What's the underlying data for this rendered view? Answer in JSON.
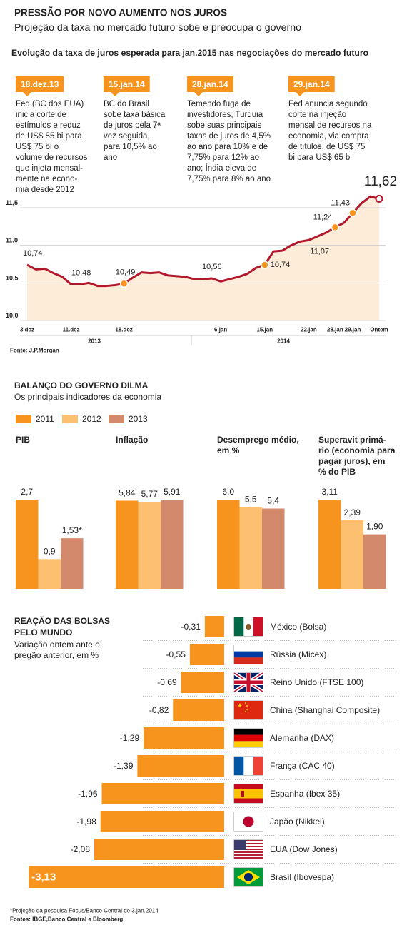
{
  "header": {
    "title": "PRESSÃO POR NOVO AUMENTO NOS JUROS",
    "subtitle": "Projeção da taxa no mercado futuro sobe e preocupa o governo"
  },
  "chart_data": [
    {
      "type": "line",
      "title": "Evolução da taxa de juros esperada para jan.2015 nas negociações do mercado futuro",
      "annotations": [
        {
          "date": "18.dez.13",
          "lines": [
            "Fed (BC dos EUA)",
            "inicia corte de",
            "estímulos e reduz",
            "de US$ 85 bi para",
            "US$ 75 bi o",
            "volume de recursos",
            "que injeta mensal-",
            "mente na econo-",
            "mia desde 2012"
          ]
        },
        {
          "date": "15.jan.14",
          "lines": [
            "BC do Brasil",
            "sobe taxa básica",
            "de juros pela 7ª",
            "vez seguida,",
            "para 10,5% ao",
            "ano"
          ]
        },
        {
          "date": "28.jan.14",
          "lines": [
            "Temendo fuga de",
            "investidores, Turquia",
            "sobe suas principais",
            "taxas de juros de 4,5%",
            "ao ano para 10% e de",
            "7,75% para 12% ao",
            "ano; Índia eleva de",
            "7,75% para 8% ao ano"
          ]
        },
        {
          "date": "29.jan.14",
          "lines": [
            "Fed anuncia segundo",
            "corte na injeção",
            "mensal de recursos na",
            "economia, via compra",
            "de títulos, de US$ 75",
            "bi para US$ 65 bi"
          ]
        }
      ],
      "categories": [
        "3.dez",
        null,
        null,
        null,
        null,
        "11.dez",
        null,
        null,
        null,
        null,
        null,
        "18.dez",
        null,
        null,
        null,
        null,
        null,
        null,
        null,
        null,
        null,
        null,
        "6.jan",
        null,
        null,
        null,
        null,
        "15.jan",
        null,
        null,
        null,
        null,
        "22.jan",
        null,
        null,
        "28.jan",
        null,
        "29.jan",
        null,
        null,
        "Ontem"
      ],
      "x_groups": [
        "2013",
        "2014"
      ],
      "series": [
        {
          "color": "#b2182b",
          "values": [
            10.74,
            10.68,
            10.69,
            10.63,
            10.58,
            10.48,
            10.48,
            10.5,
            10.46,
            10.46,
            10.47,
            10.49,
            10.57,
            10.64,
            10.63,
            10.64,
            10.6,
            10.59,
            10.58,
            10.55,
            10.55,
            10.56,
            10.52,
            10.55,
            10.58,
            10.62,
            10.7,
            10.74,
            10.92,
            10.93,
            11.0,
            11.05,
            11.07,
            11.12,
            11.17,
            11.24,
            11.3,
            11.43,
            11.56,
            11.65,
            11.62
          ],
          "value_labels": [
            "10,74",
            null,
            null,
            null,
            null,
            "10,48",
            null,
            null,
            null,
            null,
            null,
            "10,49",
            null,
            null,
            null,
            null,
            null,
            null,
            null,
            null,
            null,
            "10,56",
            null,
            null,
            null,
            null,
            null,
            "10,74",
            null,
            null,
            null,
            null,
            "11,07",
            null,
            null,
            "11,24",
            null,
            "11,43",
            null,
            null,
            "11,62"
          ]
        }
      ],
      "ylim": [
        10,
        11.7
      ],
      "yticks": [
        {
          "value": 10,
          "label": "10,0"
        },
        {
          "value": 10.5,
          "label": "10,5"
        },
        {
          "value": 11,
          "label": "11,0"
        },
        {
          "value": 11.5,
          "label": "11,5"
        }
      ],
      "grid": true,
      "source": "Fonte: J.P.Morgan"
    },
    {
      "type": "grouped_bar",
      "title": "BALANÇO DO GOVERNO DILMA",
      "subtitle": "Os principais indicadores da economia",
      "categories": [
        [
          "PIB"
        ],
        [
          "Inflação"
        ],
        [
          "Desemprego médio,",
          "em %"
        ],
        [
          "Superavit primá-",
          "rio (economia para",
          "pagar juros), em",
          "% do PIB"
        ]
      ],
      "series": [
        {
          "name": "2011",
          "color": "#f7941d",
          "values": [
            2.7,
            5.84,
            6,
            3.11
          ],
          "value_labels": [
            "2,7",
            "5,84",
            "6,0",
            "3,11"
          ]
        },
        {
          "name": "2012",
          "color": "#fdc070",
          "values": [
            0.9,
            5.77,
            5.5,
            2.39
          ],
          "value_labels": [
            "0,9",
            "5,77",
            "5,5",
            "2,39"
          ]
        },
        {
          "name": "2013",
          "color": "#d38a6c",
          "values": [
            1.53,
            5.91,
            5.4,
            1.9
          ],
          "value_labels": [
            "1,53*",
            "5,91",
            "5,4",
            "1,90"
          ]
        }
      ]
    },
    {
      "type": "barh",
      "title": [
        "REAÇÃO DAS BOLSAS",
        "PELO MUNDO"
      ],
      "subtitle": [
        "Variação ontem ante o",
        "pregão anterior, em %"
      ],
      "categories": [
        "México (Bolsa)",
        "Rússia (Micex)",
        "Reino Unido (FTSE 100)",
        "China (Shanghai Composite)",
        "Alemanha (DAX)",
        "França (CAC 40)",
        "Espanha (Ibex 35)",
        "Japão (Nikkei)",
        "EUA (Dow Jones)",
        "Brasil (Ibovespa)"
      ],
      "values": [
        -0.31,
        -0.55,
        -0.69,
        -0.82,
        -1.29,
        -1.39,
        -1.96,
        -1.98,
        -2.08,
        -3.13
      ],
      "value_labels": [
        "-0,31",
        "-0,55",
        "-0,69",
        "-0,82",
        "-1,29",
        "-1,39",
        "-1,96",
        "-1,98",
        "-2,08",
        "-3,13"
      ],
      "color": "#f7941d",
      "note": "*Projeção da pesquisa Focus/Banco Central de 3.jan.2014",
      "source": "Fontes: IBGE,Banco Central e Bloomberg"
    }
  ]
}
